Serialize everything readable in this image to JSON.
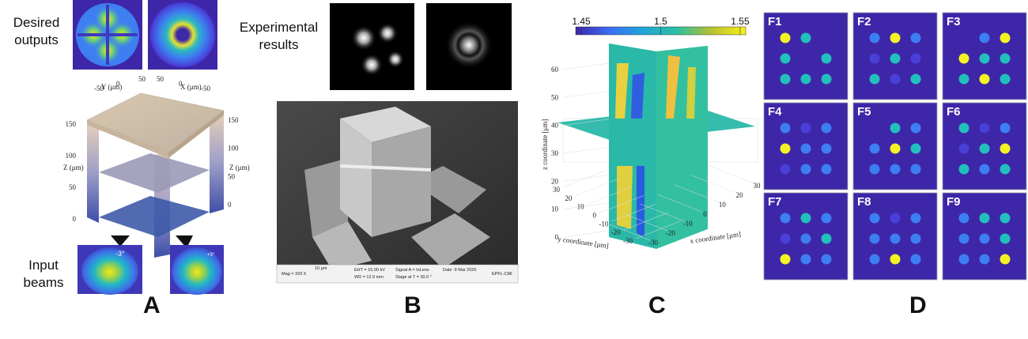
{
  "panel_a": {
    "label": "A",
    "desired_outputs": "Desired outputs",
    "input_beams": "Input beams",
    "beam_angles": [
      "-3°",
      "+3°"
    ],
    "axis_labels": [
      "Y (μm)",
      "X (μm)",
      "Z (μm)",
      "Z (μm)"
    ],
    "top_ticks": [
      50,
      0,
      -50
    ],
    "z_ticks": [
      150,
      100,
      50,
      0
    ]
  },
  "panel_b": {
    "label": "B",
    "experimental_results": "Experimental results",
    "sem_info": [
      "Mag =  329 X",
      "10 μm",
      "EHT = 15.00 kV",
      "WD = 12.9 mm",
      "Signal A = InLens",
      "Stage at T =  30.0 °",
      "Date :9 Mar 2020",
      "EPFL-CMI"
    ]
  },
  "panel_c": {
    "label": "C",
    "colorbar_ticks": [
      1.45,
      1.5,
      1.55
    ],
    "clim": [
      1.4465,
      1.5535
    ],
    "zlabel": "z coordinate [μm]",
    "ylabel": "y coordinate [μm]",
    "xlabel": "x coordinate [μm]",
    "zticks": [
      0,
      10,
      20,
      30,
      40,
      50,
      60
    ],
    "yticks": [
      30,
      20,
      10,
      0,
      -10,
      -20,
      -30
    ],
    "xticks": [
      -30,
      -20,
      -10,
      0,
      10,
      20,
      30
    ]
  },
  "panel_d": {
    "label": "D",
    "palette": [
      "#3e26a8",
      "#4a3fd8",
      "#3d7ef2",
      "#22c0bc",
      "#f5f224"
    ],
    "tiles": [
      {
        "name": "F1",
        "levels": [
          [
            4,
            3,
            0
          ],
          [
            3,
            0,
            3
          ],
          [
            3,
            3,
            3
          ]
        ]
      },
      {
        "name": "F2",
        "levels": [
          [
            2,
            4,
            2
          ],
          [
            1,
            3,
            1
          ],
          [
            3,
            1,
            3
          ]
        ]
      },
      {
        "name": "F3",
        "levels": [
          [
            0,
            2,
            4
          ],
          [
            4,
            3,
            3
          ],
          [
            3,
            4,
            3
          ]
        ]
      },
      {
        "name": "F4",
        "levels": [
          [
            2,
            1,
            2
          ],
          [
            4,
            2,
            2
          ],
          [
            1,
            2,
            2
          ]
        ]
      },
      {
        "name": "F5",
        "levels": [
          [
            0,
            3,
            2
          ],
          [
            2,
            4,
            3
          ],
          [
            2,
            2,
            2
          ]
        ]
      },
      {
        "name": "F6",
        "levels": [
          [
            3,
            1,
            2
          ],
          [
            1,
            3,
            4
          ],
          [
            3,
            2,
            3
          ]
        ]
      },
      {
        "name": "F7",
        "levels": [
          [
            2,
            3,
            2
          ],
          [
            1,
            2,
            3
          ],
          [
            4,
            2,
            2
          ]
        ]
      },
      {
        "name": "F8",
        "levels": [
          [
            2,
            1,
            2
          ],
          [
            2,
            2,
            2
          ],
          [
            2,
            4,
            2
          ]
        ]
      },
      {
        "name": "F9",
        "levels": [
          [
            2,
            3,
            3
          ],
          [
            2,
            2,
            3
          ],
          [
            2,
            2,
            4
          ]
        ]
      }
    ]
  }
}
